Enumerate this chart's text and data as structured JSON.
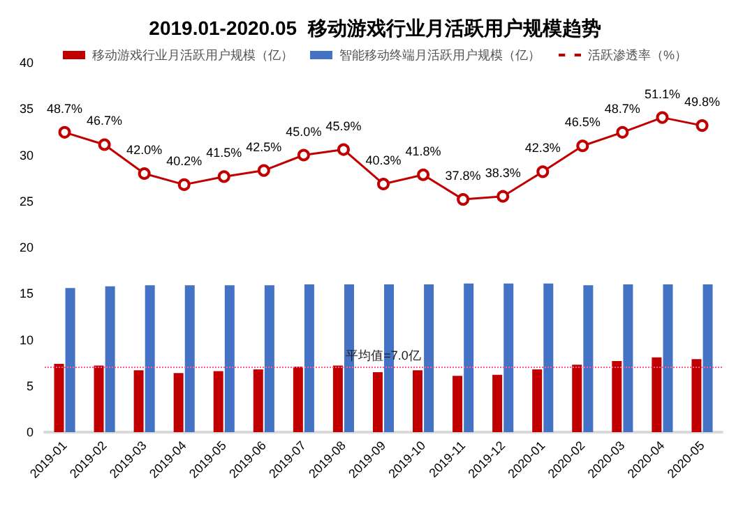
{
  "chart_data": {
    "type": "bar",
    "title": "2019.01-2020.05  移动游戏行业月活跃用户规模趋势",
    "categories": [
      "2019-01",
      "2019-02",
      "2019-03",
      "2019-04",
      "2019-05",
      "2019-06",
      "2019-07",
      "2019-08",
      "2019-09",
      "2019-10",
      "2019-11",
      "2019-12",
      "2020-01",
      "2020-02",
      "2020-03",
      "2020-04",
      "2020-05"
    ],
    "series": [
      {
        "name": "移动游戏行业月活跃用户规模（亿）",
        "color": "#c00000",
        "values": [
          7.4,
          7.2,
          6.7,
          6.4,
          6.6,
          6.8,
          7.1,
          7.2,
          6.5,
          6.7,
          6.1,
          6.2,
          6.8,
          7.3,
          7.7,
          8.1,
          7.9
        ]
      },
      {
        "name": "智能移动终端月活跃用户规模（亿）",
        "color": "#4472c4",
        "values": [
          15.6,
          15.8,
          15.9,
          15.9,
          15.9,
          15.9,
          16.0,
          16.0,
          16.0,
          16.0,
          16.1,
          16.1,
          16.1,
          15.9,
          16.0,
          16.0,
          16.0
        ]
      },
      {
        "name": "活跃渗透率（%）",
        "type": "line",
        "axis": "y2",
        "color": "#c00000",
        "marker": "circle",
        "values": [
          48.7,
          46.7,
          42.0,
          40.2,
          41.5,
          42.5,
          45.0,
          45.9,
          40.3,
          41.8,
          37.8,
          38.3,
          42.3,
          46.5,
          48.7,
          51.1,
          49.8
        ],
        "value_labels": [
          "48.7%",
          "46.7%",
          "42.0%",
          "40.2%",
          "41.5%",
          "42.5%",
          "45.0%",
          "45.9%",
          "40.3%",
          "41.8%",
          "37.8%",
          "38.3%",
          "42.3%",
          "46.5%",
          "48.7%",
          "51.1%",
          "49.8%"
        ]
      }
    ],
    "ylim": [
      0,
      40
    ],
    "yticks": [
      0,
      5,
      10,
      15,
      20,
      25,
      30,
      35,
      40
    ],
    "ref_lines": [
      {
        "axis": "y",
        "value": 7.0,
        "label": "平均值=7.0亿",
        "color": "#ff5a8c",
        "line_style": "dotted"
      }
    ],
    "legend": "top",
    "grid": false
  }
}
